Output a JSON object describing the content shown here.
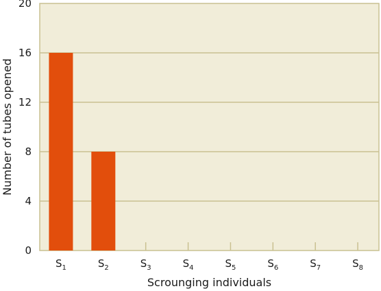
{
  "chart_data": {
    "type": "bar",
    "categories": [
      {
        "base": "S",
        "sub": "1"
      },
      {
        "base": "S",
        "sub": "2"
      },
      {
        "base": "S",
        "sub": "3"
      },
      {
        "base": "S",
        "sub": "4"
      },
      {
        "base": "S",
        "sub": "5"
      },
      {
        "base": "S",
        "sub": "6"
      },
      {
        "base": "S",
        "sub": "7"
      },
      {
        "base": "S",
        "sub": "8"
      }
    ],
    "values": [
      16,
      8,
      0,
      0,
      0,
      0,
      0,
      0
    ],
    "xlabel": "Scrounging individuals",
    "ylabel": "Number of tubes opened",
    "ylim": [
      0,
      20
    ],
    "yticks": [
      0,
      4,
      8,
      12,
      16,
      20
    ],
    "grid": true,
    "colors": {
      "bar": "#e24e0c",
      "plot_bg": "#f1edd9",
      "grid": "#c9c091",
      "axis": "#c9c091"
    }
  }
}
